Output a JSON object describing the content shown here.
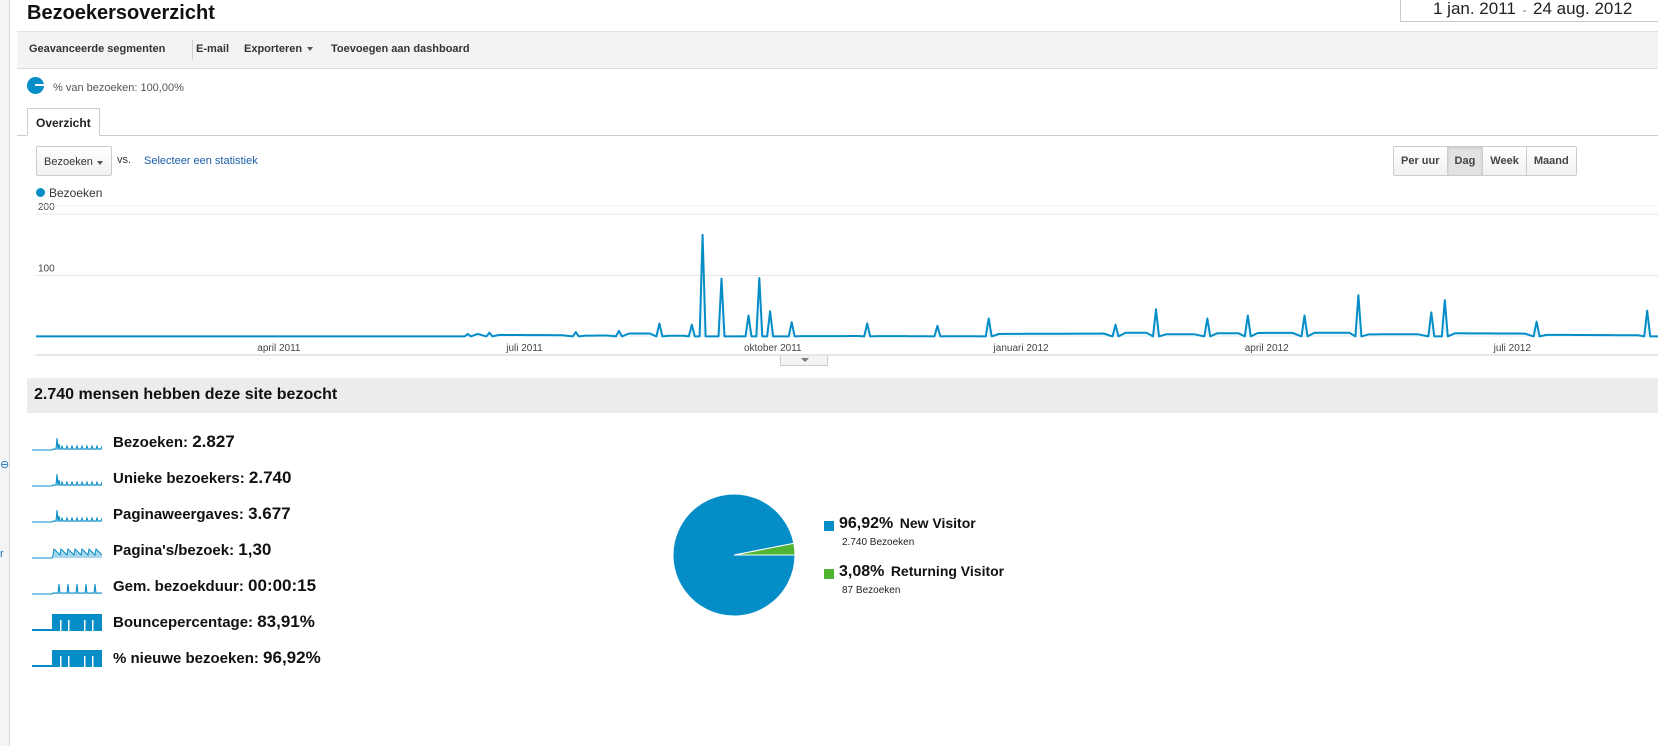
{
  "page": {
    "title": "Bezoekersoverzicht",
    "date_start": "1 jan. 2011",
    "date_sep": "-",
    "date_end": "24 aug. 2012"
  },
  "toolbar": {
    "advanced_segments": "Geavanceerde segmenten",
    "email": "E-mail",
    "export": "Exporteren",
    "add_dashboard": "Toevoegen aan dashboard"
  },
  "segment": {
    "label": "% van bezoeken: 100,00%"
  },
  "tabs": {
    "overview": "Overzicht"
  },
  "controls": {
    "metric": "Bezoeken",
    "vs": "vs.",
    "select_stat": "Selecteer een statistiek",
    "granularity": [
      "Per uur",
      "Dag",
      "Week",
      "Maand"
    ],
    "granularity_active": "Dag"
  },
  "chart_data": [
    {
      "type": "line",
      "title": "",
      "series": [
        {
          "name": "Bezoeken",
          "color": "#058dc7"
        }
      ],
      "ylim": [
        0,
        200
      ],
      "yticks": [
        "200",
        "100"
      ],
      "xticks": [
        "april 2011",
        "juli 2011",
        "oktober 2011",
        "januari 2012",
        "april 2012",
        "juli 2012"
      ],
      "x_range": [
        "2011-01-01",
        "2012-08-24"
      ],
      "grid": true,
      "baseline_visits": 1,
      "spikes": [
        {
          "date": "2011-06-10",
          "visits": 5
        },
        {
          "date": "2011-06-18",
          "visits": 7
        },
        {
          "date": "2011-07-20",
          "visits": 8
        },
        {
          "date": "2011-08-05",
          "visits": 10
        },
        {
          "date": "2011-08-20",
          "visits": 22
        },
        {
          "date": "2011-09-01",
          "visits": 20
        },
        {
          "date": "2011-09-05",
          "visits": 166
        },
        {
          "date": "2011-09-12",
          "visits": 95
        },
        {
          "date": "2011-09-22",
          "visits": 35
        },
        {
          "date": "2011-09-26",
          "visits": 96
        },
        {
          "date": "2011-09-30",
          "visits": 42
        },
        {
          "date": "2011-10-08",
          "visits": 24
        },
        {
          "date": "2011-11-05",
          "visits": 22
        },
        {
          "date": "2011-12-01",
          "visits": 18
        },
        {
          "date": "2011-12-20",
          "visits": 30
        },
        {
          "date": "2012-02-05",
          "visits": 20
        },
        {
          "date": "2012-02-20",
          "visits": 45
        },
        {
          "date": "2012-03-10",
          "visits": 30
        },
        {
          "date": "2012-03-25",
          "visits": 35
        },
        {
          "date": "2012-04-15",
          "visits": 35
        },
        {
          "date": "2012-05-05",
          "visits": 68
        },
        {
          "date": "2012-06-01",
          "visits": 40
        },
        {
          "date": "2012-06-06",
          "visits": 60
        },
        {
          "date": "2012-07-10",
          "visits": 25
        },
        {
          "date": "2012-08-20",
          "visits": 43
        }
      ]
    },
    {
      "type": "pie",
      "title": "",
      "categories": [
        "New Visitor",
        "Returning Visitor"
      ],
      "values": [
        96.92,
        3.08
      ],
      "visits": [
        2740,
        87
      ],
      "colors": [
        "#058dc7",
        "#50b432"
      ]
    }
  ],
  "summary": {
    "header": "2.740 mensen hebben deze site bezocht",
    "metrics": [
      {
        "label": "Bezoeken:",
        "value": "2.827",
        "spark": "spiky"
      },
      {
        "label": "Unieke bezoekers:",
        "value": "2.740",
        "spark": "spiky"
      },
      {
        "label": "Paginaweergaves:",
        "value": "3.677",
        "spark": "spiky"
      },
      {
        "label": "Pagina's/bezoek:",
        "value": "1,30",
        "spark": "dense"
      },
      {
        "label": "Gem. bezoekduur:",
        "value": "00:00:15",
        "spark": "sparse"
      },
      {
        "label": "Bouncepercentage:",
        "value": "83,91%",
        "spark": "block"
      },
      {
        "label": "% nieuwe bezoeken:",
        "value": "96,92%",
        "spark": "block"
      }
    ]
  },
  "pie_legend": [
    {
      "pct": "96,92%",
      "name": "New Visitor",
      "sub": "2.740 Bezoeken",
      "color": "#058dc7"
    },
    {
      "pct": "3,08%",
      "name": "Returning Visitor",
      "sub": "87 Bezoeken",
      "color": "#50b432"
    }
  ],
  "left_edge": {
    "frag": "r"
  }
}
